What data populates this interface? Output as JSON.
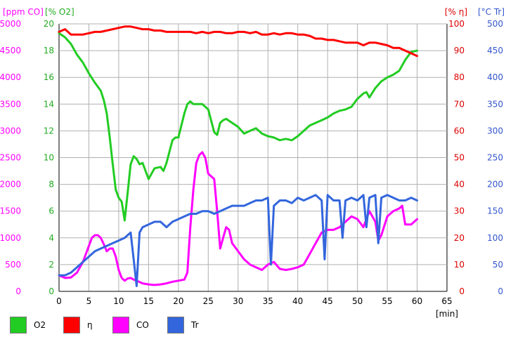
{
  "chart_data": {
    "type": "line",
    "x_unit_label": "[min]",
    "xlim": [
      0,
      65
    ],
    "x_ticks": [
      "0",
      "5",
      "10",
      "15",
      "20",
      "25",
      "30",
      "35",
      "40",
      "45",
      "50",
      "55",
      "60",
      "65"
    ],
    "axes": {
      "co": {
        "label": "[ppm CO]",
        "color": "#ff00ff",
        "ylim": [
          0,
          5000
        ],
        "ticks": [
          "0",
          "500",
          "1000",
          "1500",
          "2000",
          "2500",
          "3000",
          "3500",
          "4000",
          "4500",
          "5000"
        ]
      },
      "o2": {
        "label": "[% O2]",
        "color": "#22aa22",
        "ylim": [
          0,
          20
        ],
        "ticks": [
          "0",
          "2",
          "4",
          "6",
          "8",
          "10",
          "12",
          "14",
          "16",
          "18",
          "20"
        ]
      },
      "eta": {
        "label": "[% η]",
        "color": "#dd0000",
        "ylim": [
          0,
          100
        ],
        "ticks": [
          "0",
          "10",
          "20",
          "30",
          "40",
          "50",
          "60",
          "70",
          "80",
          "90",
          "100"
        ]
      },
      "tr": {
        "label": "[°C Tr]",
        "color": "#3355cc",
        "ylim": [
          0,
          500
        ],
        "ticks": [
          "0",
          "50",
          "100",
          "150",
          "200",
          "250",
          "300",
          "350",
          "400",
          "450",
          "500"
        ]
      }
    },
    "grid": true,
    "legend_position": "bottom",
    "series": [
      {
        "name": "O2",
        "axis": "o2",
        "color": "#22cc22",
        "x": [
          0,
          1,
          2,
          3,
          4,
          5,
          6,
          7,
          7.5,
          8,
          8.5,
          9,
          9.5,
          10,
          10.5,
          11,
          11.5,
          12,
          12.5,
          13,
          13.5,
          14,
          15,
          16,
          17,
          17.5,
          18,
          19,
          19.5,
          20,
          21,
          21.5,
          22,
          22.5,
          23,
          23.5,
          24,
          25,
          26,
          26.5,
          27,
          27.5,
          28,
          29,
          30,
          31,
          32,
          33,
          34,
          35,
          36,
          37,
          38,
          39,
          40,
          41,
          42,
          43,
          44,
          45,
          46,
          47,
          48,
          49,
          50,
          51,
          51.5,
          52,
          53,
          54,
          55,
          56,
          57,
          58,
          59,
          60
        ],
        "y": [
          19.3,
          19.0,
          18.5,
          17.7,
          17.1,
          16.3,
          15.6,
          15.0,
          14.3,
          13.3,
          11.5,
          9.5,
          7.6,
          7.0,
          6.7,
          5.3,
          7.4,
          9.5,
          10.1,
          9.9,
          9.5,
          9.6,
          8.4,
          9.2,
          9.3,
          9.0,
          9.6,
          11.3,
          11.5,
          11.5,
          13.3,
          14.0,
          14.2,
          14.0,
          14.0,
          14.0,
          14.0,
          13.6,
          11.9,
          11.7,
          12.6,
          12.8,
          12.9,
          12.6,
          12.3,
          11.8,
          12.0,
          12.2,
          11.8,
          11.6,
          11.5,
          11.3,
          11.4,
          11.3,
          11.6,
          12.0,
          12.4,
          12.6,
          12.8,
          13.0,
          13.3,
          13.5,
          13.6,
          13.8,
          14.4,
          14.8,
          14.9,
          14.5,
          15.2,
          15.7,
          16.0,
          16.2,
          16.5,
          17.3,
          17.9,
          18.0
        ]
      },
      {
        "name": "η",
        "axis": "eta",
        "color": "#ff0000",
        "x": [
          0,
          1,
          2,
          3,
          4,
          5,
          6,
          7,
          8,
          9,
          10,
          11,
          12,
          13,
          14,
          15,
          16,
          17,
          18,
          19,
          20,
          21,
          22,
          23,
          24,
          25,
          26,
          27,
          28,
          29,
          30,
          31,
          32,
          33,
          34,
          35,
          36,
          37,
          38,
          39,
          40,
          41,
          42,
          43,
          44,
          45,
          46,
          47,
          48,
          49,
          50,
          51,
          52,
          53,
          54,
          55,
          56,
          57,
          58,
          59,
          60
        ],
        "y": [
          97,
          98,
          96,
          96,
          96,
          96.5,
          97,
          97,
          97.5,
          98,
          98.5,
          99,
          99,
          98.5,
          98,
          98,
          97.5,
          97.5,
          97,
          97,
          97,
          97,
          97,
          96.5,
          97,
          96.5,
          97,
          97,
          96.5,
          96.5,
          97,
          97,
          96.5,
          97,
          96,
          96,
          96.5,
          96,
          96.5,
          96.5,
          96,
          96,
          95.5,
          94.5,
          94.5,
          94,
          94,
          93.5,
          93,
          93,
          93,
          92,
          93,
          93,
          92.5,
          92,
          91,
          91,
          90,
          89,
          88
        ]
      },
      {
        "name": "CO",
        "axis": "co",
        "color": "#ff00ff",
        "x": [
          0,
          1,
          2,
          3,
          4,
          5,
          5.5,
          6,
          6.5,
          7,
          7.5,
          8,
          8.5,
          9,
          9.5,
          10,
          10.5,
          11,
          11.5,
          12,
          12.5,
          13,
          14,
          15,
          16,
          17,
          18,
          19,
          20,
          21,
          21.5,
          22,
          22.5,
          23,
          23.5,
          24,
          24.5,
          25,
          26,
          26.5,
          27,
          27.5,
          28,
          28.5,
          29,
          30,
          31,
          32,
          33,
          34,
          35,
          36,
          37,
          38,
          39,
          40,
          41,
          42,
          43,
          44,
          45,
          46,
          47,
          48,
          49,
          50,
          51,
          52,
          53,
          53.5,
          54,
          55,
          56,
          57,
          57.5,
          58,
          59,
          60
        ],
        "y": [
          300,
          250,
          260,
          350,
          550,
          850,
          1000,
          1050,
          1050,
          1000,
          880,
          750,
          800,
          800,
          650,
          400,
          250,
          200,
          240,
          250,
          220,
          200,
          150,
          130,
          120,
          130,
          150,
          180,
          200,
          220,
          350,
          1200,
          1900,
          2400,
          2550,
          2600,
          2500,
          2200,
          2100,
          1500,
          800,
          1000,
          1200,
          1150,
          900,
          750,
          600,
          500,
          450,
          400,
          500,
          550,
          420,
          400,
          420,
          450,
          500,
          700,
          900,
          1100,
          1150,
          1150,
          1200,
          1300,
          1400,
          1350,
          1200,
          1500,
          1300,
          950,
          1050,
          1400,
          1500,
          1550,
          1600,
          1250,
          1250,
          1350
        ]
      },
      {
        "name": "Tr",
        "axis": "tr",
        "color": "#3366dd",
        "x": [
          0,
          1,
          2,
          3,
          4,
          5,
          6,
          7,
          8,
          9,
          10,
          11,
          12,
          12.5,
          13,
          13.5,
          14,
          15,
          16,
          17,
          18,
          19,
          20,
          21,
          22,
          23,
          24,
          25,
          26,
          27,
          28,
          29,
          30,
          31,
          32,
          33,
          34,
          35,
          35.5,
          36,
          37,
          38,
          39,
          40,
          41,
          42,
          43,
          44,
          44.5,
          45,
          46,
          47,
          47.5,
          48,
          49,
          50,
          51,
          51.5,
          52,
          53,
          53.5,
          54,
          55,
          56,
          57,
          58,
          59,
          60
        ],
        "y": [
          30,
          30,
          35,
          45,
          55,
          65,
          75,
          80,
          85,
          90,
          95,
          100,
          110,
          60,
          10,
          110,
          120,
          125,
          130,
          130,
          120,
          130,
          135,
          140,
          145,
          145,
          150,
          150,
          145,
          150,
          155,
          160,
          160,
          160,
          165,
          170,
          170,
          175,
          50,
          160,
          170,
          170,
          165,
          175,
          170,
          175,
          180,
          170,
          60,
          180,
          170,
          170,
          100,
          170,
          175,
          170,
          180,
          120,
          175,
          180,
          90,
          175,
          180,
          175,
          170,
          170,
          175,
          170
        ]
      }
    ]
  },
  "legend": [
    {
      "name": "O2",
      "color": "#22cc22"
    },
    {
      "name": "η",
      "color": "#ff0000"
    },
    {
      "name": "CO",
      "color": "#ff00ff"
    },
    {
      "name": "Tr",
      "color": "#3366dd"
    }
  ]
}
